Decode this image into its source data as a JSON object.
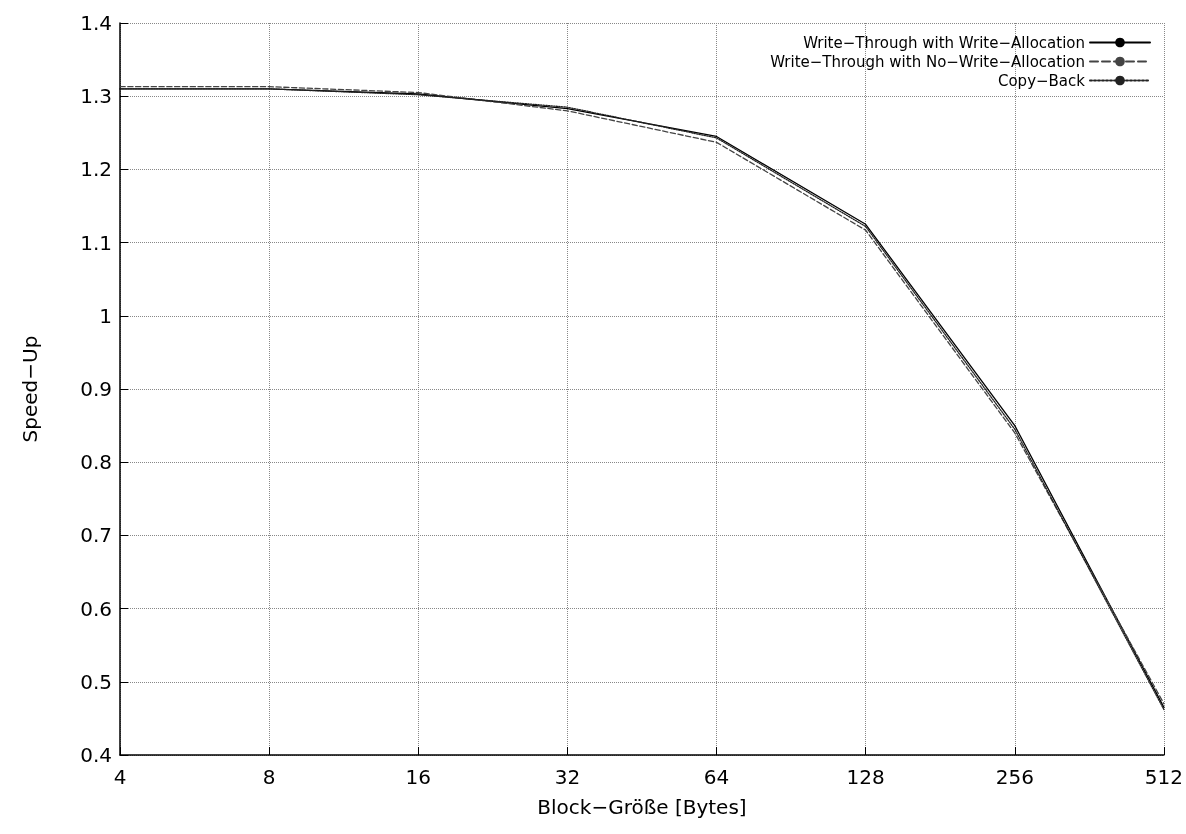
{
  "chart_data": {
    "type": "line",
    "xlabel": "Block−Größe [Bytes]",
    "ylabel": "Speed−Up",
    "categories": [
      "4",
      "8",
      "16",
      "32",
      "64",
      "128",
      "256",
      "512"
    ],
    "series": [
      {
        "name": "Write−Through with Write−Allocation",
        "color": "#000000",
        "line_style": "solid",
        "values": [
          1.31,
          1.31,
          1.303,
          1.283,
          1.245,
          1.125,
          0.85,
          0.465
        ]
      },
      {
        "name": "Write−Through with No−Write−Allocation",
        "color": "#444444",
        "line_style": "dashed",
        "values": [
          1.313,
          1.313,
          1.305,
          1.28,
          1.237,
          1.117,
          0.84,
          0.47
        ]
      },
      {
        "name": "Copy−Back",
        "color": "#222222",
        "line_style": "dotted",
        "values": [
          1.31,
          1.31,
          1.302,
          1.285,
          1.243,
          1.122,
          0.845,
          0.462
        ]
      }
    ],
    "ylim": [
      0.4,
      1.4
    ],
    "yticks": [
      0.4,
      0.5,
      0.6,
      0.7,
      0.8,
      0.9,
      1,
      1.1,
      1.2,
      1.3,
      1.4
    ],
    "grid": true,
    "legend": "top right",
    "marker": "none"
  }
}
